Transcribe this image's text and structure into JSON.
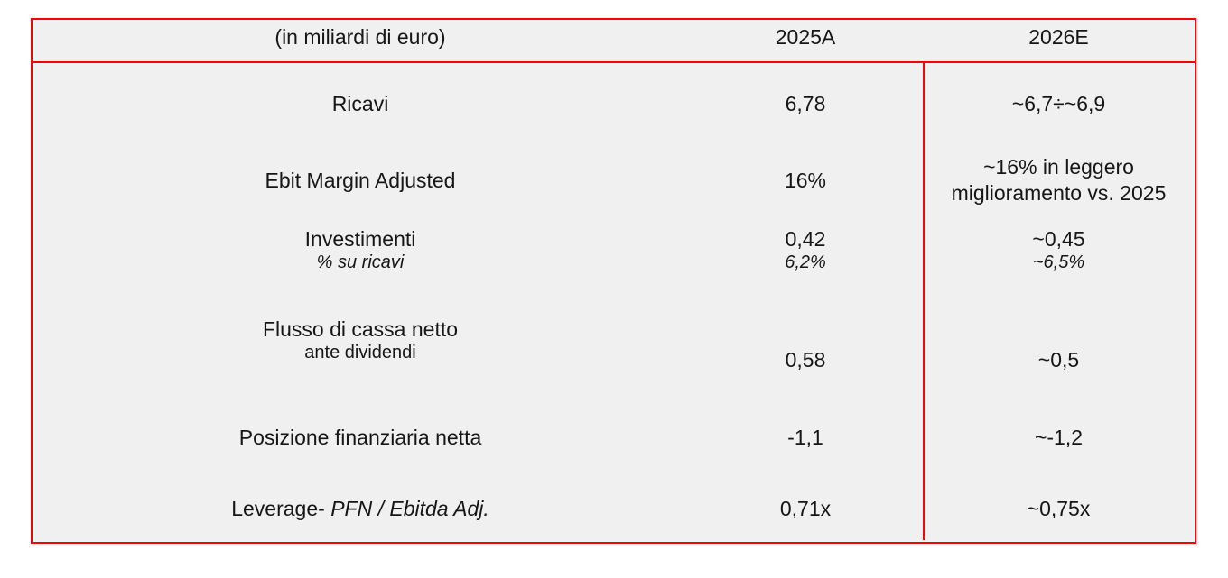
{
  "table": {
    "header": {
      "unit_label": "(in miliardi di euro)",
      "col_2025": "2025A",
      "col_2026": "2026E"
    },
    "rows": {
      "ricavi": {
        "label": "Ricavi",
        "v2025": "6,78",
        "v2026": "~6,7÷~6,9"
      },
      "ebit": {
        "label": "Ebit Margin Adjusted",
        "v2025": "16%",
        "v2026_line1": "~16% in leggero",
        "v2026_line2": "miglioramento vs. 2025"
      },
      "investimenti": {
        "label": "Investimenti",
        "label_sub": "% su ricavi",
        "v2025": "0,42",
        "v2025_sub": "6,2%",
        "v2026": "~0,45",
        "v2026_sub": "~6,5%"
      },
      "flusso": {
        "label": "Flusso di cassa netto",
        "label_sub": "ante dividendi",
        "v2025": "0,58",
        "v2026": "~0,5"
      },
      "pfn": {
        "label": "Posizione finanziaria netta",
        "v2025": "-1,1",
        "v2026": "~-1,2"
      },
      "leverage": {
        "label": "Leverage",
        "label_sep": "- ",
        "label_italic": "PFN / Ebitda Adj.",
        "v2025": "0,71x",
        "v2026": "~0,75x"
      }
    },
    "colors": {
      "border_red": "#f40600",
      "table_bg": "#f0f0f1",
      "text": "#161616",
      "page_bg": "#ffffff"
    }
  }
}
